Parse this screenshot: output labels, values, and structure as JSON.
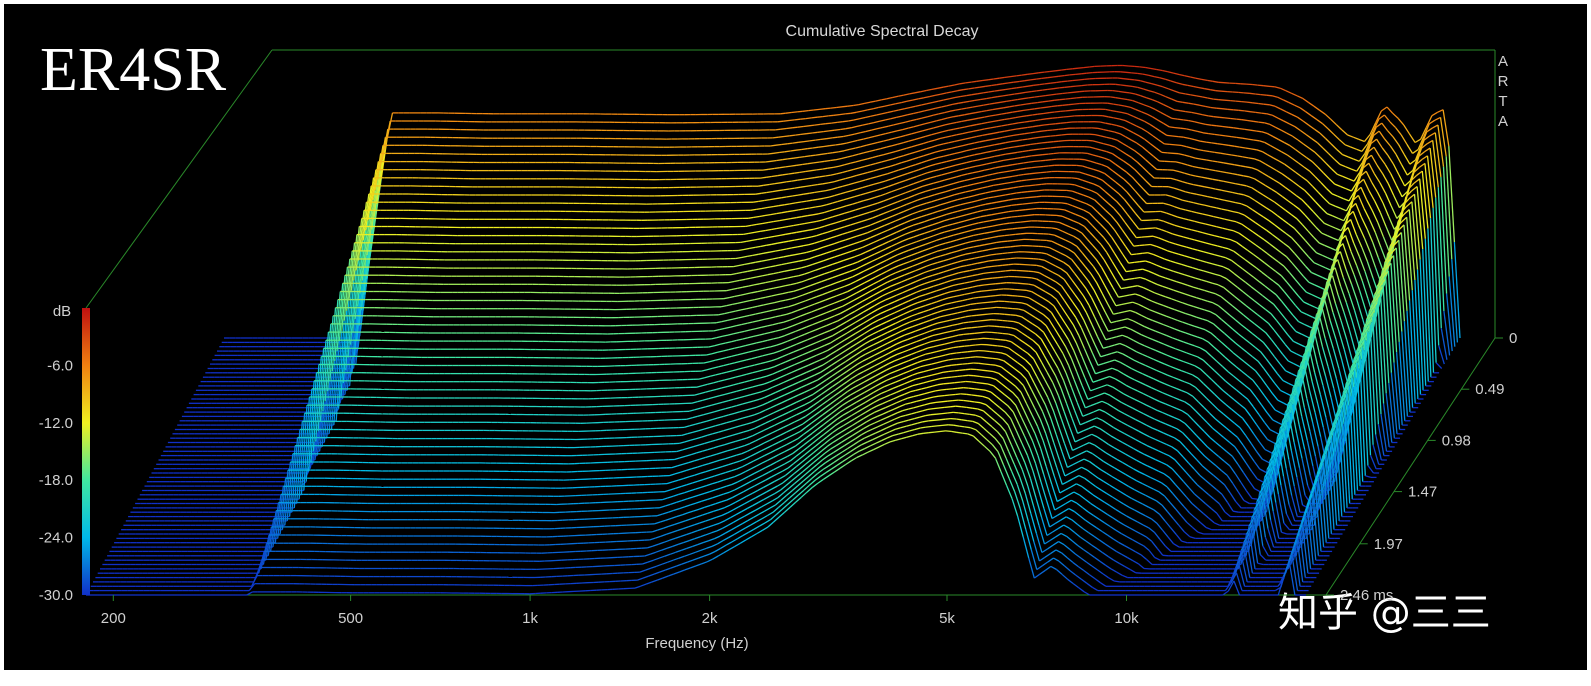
{
  "image_label": "ER4SR",
  "watermark": "知乎 @三三",
  "chart_data": {
    "type": "area",
    "title": "Cumulative Spectral Decay",
    "xlabel": "Frequency (Hz)",
    "ylabel": "dB",
    "zlabel": "ms",
    "software_label": [
      "A",
      "R",
      "T",
      "A"
    ],
    "x_scale": "log",
    "x_ticks": [
      "200",
      "500",
      "1k",
      "2k",
      "5k",
      "10k"
    ],
    "x_tick_values": [
      200,
      500,
      1000,
      2000,
      5000,
      10000
    ],
    "xlim": [
      180,
      20000
    ],
    "y_ticks": [
      "-6.0",
      "-12.0",
      "-18.0",
      "-24.0",
      "-30.0"
    ],
    "y_tick_values": [
      -6,
      -12,
      -18,
      -24,
      -30
    ],
    "ylim": [
      -30,
      0
    ],
    "z_ticks": [
      "0",
      "0.49",
      "0.98",
      "1.47",
      "1.97",
      "2.46"
    ],
    "z_tick_values": [
      0,
      0.49,
      0.98,
      1.47,
      1.97,
      2.46
    ],
    "zlim": [
      0,
      2.46
    ],
    "series_count": 60,
    "frequencies": [
      180,
      300,
      340,
      400,
      500,
      700,
      1000,
      1500,
      2000,
      2500,
      3000,
      3500,
      4000,
      4500,
      5000,
      5500,
      6000,
      6500,
      7000,
      7500,
      8000,
      9000,
      10000,
      11000,
      12000,
      13000,
      14000,
      15000,
      15500,
      16000,
      17000,
      18000,
      19000,
      20000
    ],
    "initial_response_db": [
      -30,
      -30,
      -6.3,
      -6.3,
      -6.4,
      -6.4,
      -6.5,
      -6.4,
      -5.5,
      -4.2,
      -3.2,
      -2.6,
      -2.1,
      -1.7,
      -1.4,
      -1.3,
      -1.5,
      -1.9,
      -2.4,
      -2.8,
      -3.1,
      -3.3,
      -3.6,
      -4.8,
      -6.5,
      -8.6,
      -9.4,
      -5.4,
      -6.4,
      -7.2,
      -9.8,
      -6.5,
      -5.8,
      -30
    ],
    "decay_rate_db_per_ms": [
      50,
      50,
      9.5,
      9.5,
      9.5,
      9.5,
      9.5,
      9.3,
      8.5,
      7.6,
      6.2,
      5.3,
      4.8,
      4.6,
      4.6,
      4.8,
      5.6,
      7.6,
      10.5,
      9.8,
      10.3,
      11.2,
      11.8,
      12.8,
      13.0,
      13.8,
      14.0,
      8.6,
      11.0,
      13.0,
      17.0,
      9.3,
      8.1,
      50
    ],
    "colorbar": [
      "#1030c8",
      "#00b8e8",
      "#40e8a0",
      "#f0f020",
      "#f08010",
      "#c01010"
    ],
    "grid": false
  }
}
